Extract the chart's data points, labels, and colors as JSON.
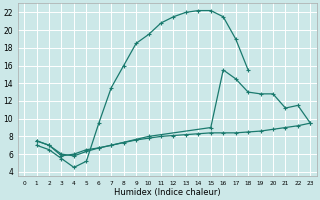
{
  "xlabel": "Humidex (Indice chaleur)",
  "bg_color": "#cce8e8",
  "grid_color": "#ffffff",
  "line_color": "#1a7a6e",
  "xlim": [
    -0.5,
    23.5
  ],
  "ylim": [
    3.5,
    23
  ],
  "xticks": [
    0,
    1,
    2,
    3,
    4,
    5,
    6,
    7,
    8,
    9,
    10,
    11,
    12,
    13,
    14,
    15,
    16,
    17,
    18,
    19,
    20,
    21,
    22,
    23
  ],
  "yticks": [
    4,
    6,
    8,
    10,
    12,
    14,
    16,
    18,
    20,
    22
  ],
  "line1_x": [
    1,
    2,
    3,
    4,
    5,
    6,
    7,
    8,
    9,
    10,
    11,
    12,
    13,
    14,
    15,
    16,
    17,
    18
  ],
  "line1_y": [
    7.0,
    6.5,
    5.5,
    4.5,
    5.2,
    9.5,
    13.5,
    16.0,
    18.5,
    19.5,
    20.8,
    21.5,
    22.0,
    22.2,
    22.2,
    21.5,
    19.0,
    15.5
  ],
  "line2_x": [
    1,
    2,
    3,
    4,
    5,
    6,
    7,
    8,
    9,
    10,
    11,
    12,
    13,
    14,
    15,
    16,
    17,
    18,
    19,
    20,
    21,
    22,
    23
  ],
  "line2_y": [
    7.5,
    7.0,
    6.0,
    5.8,
    6.3,
    6.7,
    7.0,
    7.3,
    7.6,
    7.8,
    8.0,
    8.1,
    8.2,
    8.3,
    8.4,
    8.4,
    8.4,
    8.5,
    8.6,
    8.8,
    9.0,
    9.2,
    9.5
  ],
  "line3_x": [
    1,
    2,
    3,
    4,
    5,
    6,
    7,
    10,
    15,
    16,
    17,
    18,
    19,
    20,
    21,
    22,
    23
  ],
  "line3_y": [
    7.5,
    7.0,
    5.8,
    6.0,
    6.5,
    6.7,
    7.0,
    8.0,
    9.0,
    15.5,
    14.5,
    13.0,
    12.8,
    12.8,
    11.2,
    11.5,
    9.5
  ],
  "marker_size": 2.5,
  "line_width": 0.9,
  "xlabel_fontsize": 6,
  "tick_fontsize_x": 4.2,
  "tick_fontsize_y": 5.5
}
